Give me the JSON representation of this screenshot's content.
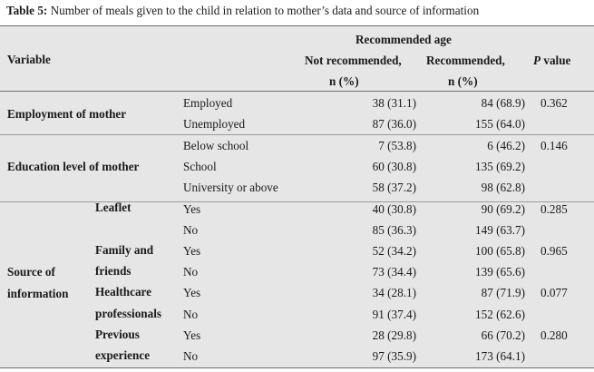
{
  "caption": {
    "label": "Table 5:",
    "text": "Number of meals given to the child in relation to mother’s data and source of information"
  },
  "header": {
    "group": "Recommended age",
    "variable": "Variable",
    "not_rec_1": "Not recommended,",
    "not_rec_2": "n (%)",
    "rec_1": "Recommended,",
    "rec_2": "n (%)",
    "p_italic": "P",
    "p_rest": " value"
  },
  "groups": {
    "employment": "Employment of mother",
    "education": "Education level of mother",
    "source_1": "Source of",
    "source_2": "information"
  },
  "subgroups": {
    "leaflet": "Leaflet",
    "family_1": "Family and",
    "family_2": "friends",
    "health_1": "Healthcare",
    "health_2": "professionals",
    "prev_1": "Previous",
    "prev_2": "experience"
  },
  "rows": [
    {
      "level": "Employed",
      "not_rec": "38 (31.1)",
      "rec": "84 (68.9)",
      "p": "0.362"
    },
    {
      "level": "Unemployed",
      "not_rec": "87 (36.0)",
      "rec": "155 (64.0)",
      "p": ""
    },
    {
      "level": "Below school",
      "not_rec": "7 (53.8)",
      "rec": "6 (46.2)",
      "p": "0.146"
    },
    {
      "level": "School",
      "not_rec": "60 (30.8)",
      "rec": "135 (69.2)",
      "p": ""
    },
    {
      "level": "University or above",
      "not_rec": "58 (37.2)",
      "rec": "98 (62.8)",
      "p": ""
    },
    {
      "level": "Yes",
      "not_rec": "40 (30.8)",
      "rec": "90 (69.2)",
      "p": "0.285"
    },
    {
      "level": "No",
      "not_rec": "85 (36.3)",
      "rec": "149 (63.7)",
      "p": ""
    },
    {
      "level": "Yes",
      "not_rec": "52 (34.2)",
      "rec": "100 (65.8)",
      "p": "0.965"
    },
    {
      "level": "No",
      "not_rec": "73 (34.4)",
      "rec": "139 (65.6)",
      "p": ""
    },
    {
      "level": "Yes",
      "not_rec": "34 (28.1)",
      "rec": "87 (71.9)",
      "p": "0.077"
    },
    {
      "level": "No",
      "not_rec": "91 (37.4)",
      "rec": "152 (62.6)",
      "p": ""
    },
    {
      "level": "Yes",
      "not_rec": "28 (29.8)",
      "rec": "66 (70.2)",
      "p": "0.280"
    },
    {
      "level": "No",
      "not_rec": "97 (35.9)",
      "rec": "173 (64.1)",
      "p": ""
    }
  ]
}
